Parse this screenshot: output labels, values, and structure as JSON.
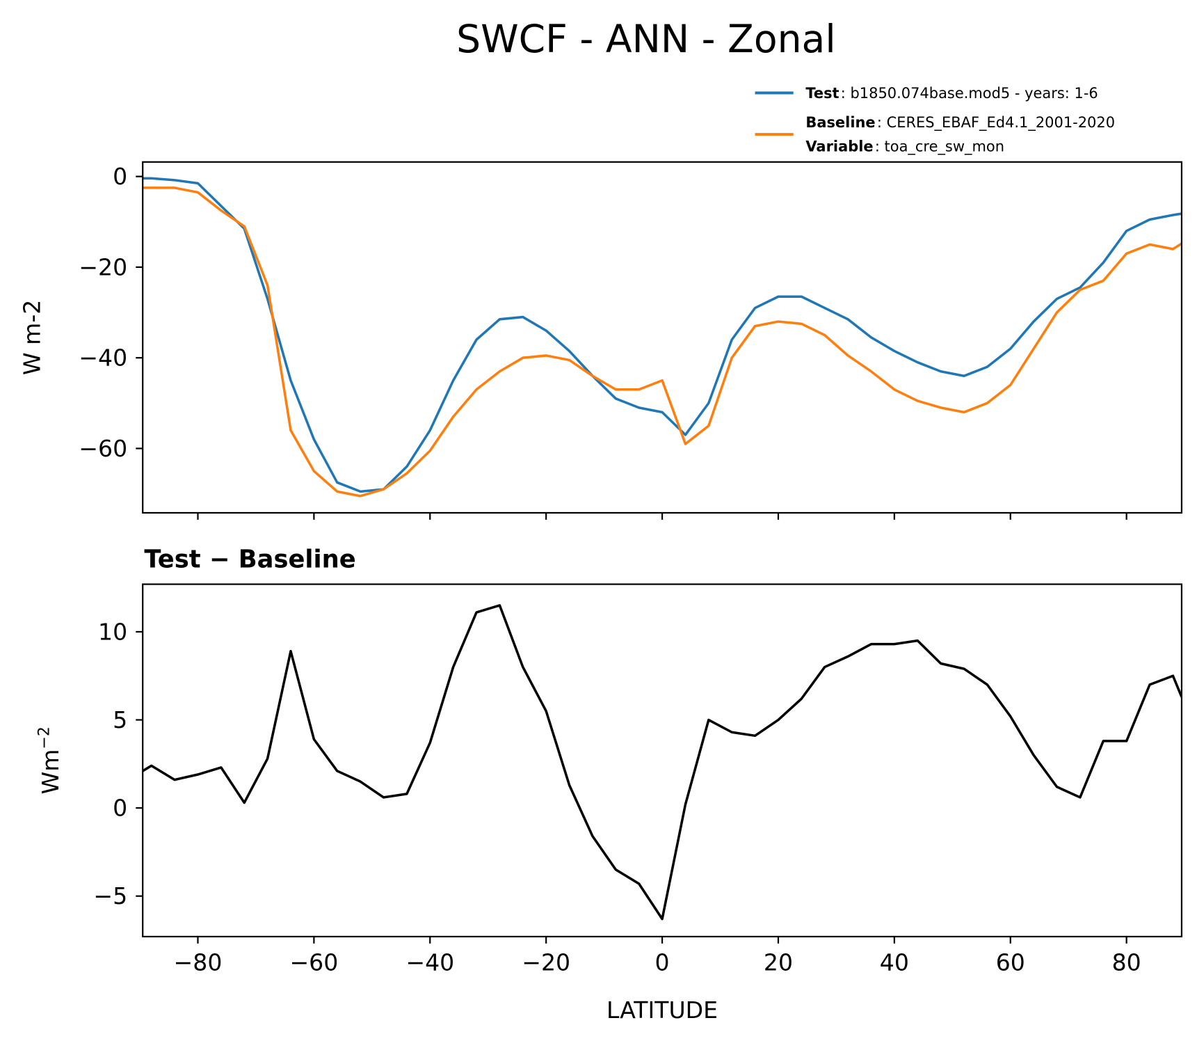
{
  "chart_data": [
    {
      "type": "line",
      "title": "SWCF - ANN - Zonal",
      "ylabel": "W m-2",
      "x": [
        -89.5,
        -88,
        -84,
        -80,
        -76,
        -72,
        -68,
        -64,
        -60,
        -56,
        -52,
        -48,
        -44,
        -40,
        -36,
        -32,
        -28,
        -24,
        -20,
        -16,
        -12,
        -8,
        -4,
        0,
        4,
        8,
        12,
        16,
        20,
        24,
        28,
        32,
        36,
        40,
        44,
        48,
        52,
        56,
        60,
        64,
        68,
        72,
        76,
        80,
        84,
        88,
        89.5
      ],
      "series": [
        {
          "name": "Test",
          "label_text": ": b1850.074base.mod5 - years: 1-6",
          "color": "#1f77b4",
          "values": [
            -0.4,
            -0.4,
            -0.8,
            -1.5,
            -6.5,
            -11.5,
            -27,
            -45,
            -58,
            -67.5,
            -69.5,
            -69,
            -64,
            -56,
            -45,
            -36,
            -31.5,
            -31,
            -34,
            -38.5,
            -44,
            -49,
            -51,
            -52,
            -57,
            -50,
            -36,
            -29,
            -26.5,
            -26.5,
            -29,
            -31.5,
            -35.5,
            -38.5,
            -41,
            -43,
            -44,
            -42,
            -38,
            -32,
            -27,
            -24.5,
            -19,
            -12,
            -9.5,
            -8.5,
            -8.2
          ]
        },
        {
          "name": "Baseline",
          "label_text": ": CERES_EBAF_Ed4.1_2001-2020",
          "variable_name": "Variable",
          "variable_text": ": toa_cre_sw_mon",
          "color": "#ff7f0e",
          "values": [
            -2.5,
            -2.5,
            -2.5,
            -3.5,
            -7.5,
            -11,
            -24,
            -56,
            -65,
            -69.5,
            -70.5,
            -69,
            -65.5,
            -60.5,
            -53,
            -47,
            -43,
            -40,
            -39.5,
            -40.5,
            -44,
            -47,
            -47,
            -45,
            -59,
            -55,
            -40,
            -33,
            -32,
            -32.5,
            -35,
            -39.5,
            -43,
            -47,
            -49.5,
            -51,
            -52,
            -50,
            -46,
            -38,
            -30,
            -25,
            -23,
            -17,
            -15,
            -16,
            -14.8
          ]
        }
      ],
      "xlim": [
        -89.5,
        89.5
      ],
      "xticks": [
        -80,
        -60,
        -40,
        -20,
        0,
        20,
        40,
        60,
        80
      ],
      "ylim": [
        -74.2,
        3.2
      ],
      "yticks": [
        {
          "value": 0,
          "label": "0"
        },
        {
          "value": -20,
          "label": "−20"
        },
        {
          "value": -40,
          "label": "−40"
        },
        {
          "value": -60,
          "label": "−60"
        }
      ]
    },
    {
      "type": "line",
      "title": "Test − Baseline",
      "ylabel": "Wm",
      "ylabel_sup": "−2",
      "xlabel": "LATITUDE",
      "x": [
        -89.5,
        -88,
        -84,
        -80,
        -76,
        -72,
        -68,
        -64,
        -60,
        -56,
        -52,
        -48,
        -44,
        -40,
        -36,
        -32,
        -28,
        -24,
        -20,
        -16,
        -12,
        -8,
        -4,
        0,
        4,
        8,
        12,
        16,
        20,
        24,
        28,
        32,
        36,
        40,
        44,
        48,
        52,
        56,
        60,
        64,
        68,
        72,
        76,
        80,
        84,
        88,
        89.5
      ],
      "series": [
        {
          "color": "#000000",
          "values": [
            2.1,
            2.4,
            1.6,
            1.9,
            2.3,
            0.3,
            2.8,
            8.9,
            3.9,
            2.1,
            1.5,
            0.6,
            0.8,
            3.7,
            8.0,
            11.1,
            11.5,
            8.0,
            5.5,
            1.3,
            -1.6,
            -3.5,
            -4.3,
            -6.3,
            0.2,
            5.0,
            4.3,
            4.1,
            5.0,
            6.2,
            8.0,
            8.6,
            9.3,
            9.3,
            9.5,
            8.2,
            7.9,
            7.0,
            5.2,
            3.0,
            1.2,
            0.6,
            3.8,
            3.8,
            7.0,
            7.5,
            6.3
          ]
        }
      ],
      "xlim": [
        -89.5,
        89.5
      ],
      "xticks": [
        {
          "value": -80,
          "label": "−80"
        },
        {
          "value": -60,
          "label": "−60"
        },
        {
          "value": -40,
          "label": "−40"
        },
        {
          "value": -20,
          "label": "−20"
        },
        {
          "value": 0,
          "label": "0"
        },
        {
          "value": 20,
          "label": "20"
        },
        {
          "value": 40,
          "label": "40"
        },
        {
          "value": 60,
          "label": "60"
        },
        {
          "value": 80,
          "label": "80"
        }
      ],
      "ylim": [
        -7.3,
        12.7
      ],
      "yticks": [
        {
          "value": -5,
          "label": "−5"
        },
        0,
        5,
        10
      ]
    }
  ]
}
